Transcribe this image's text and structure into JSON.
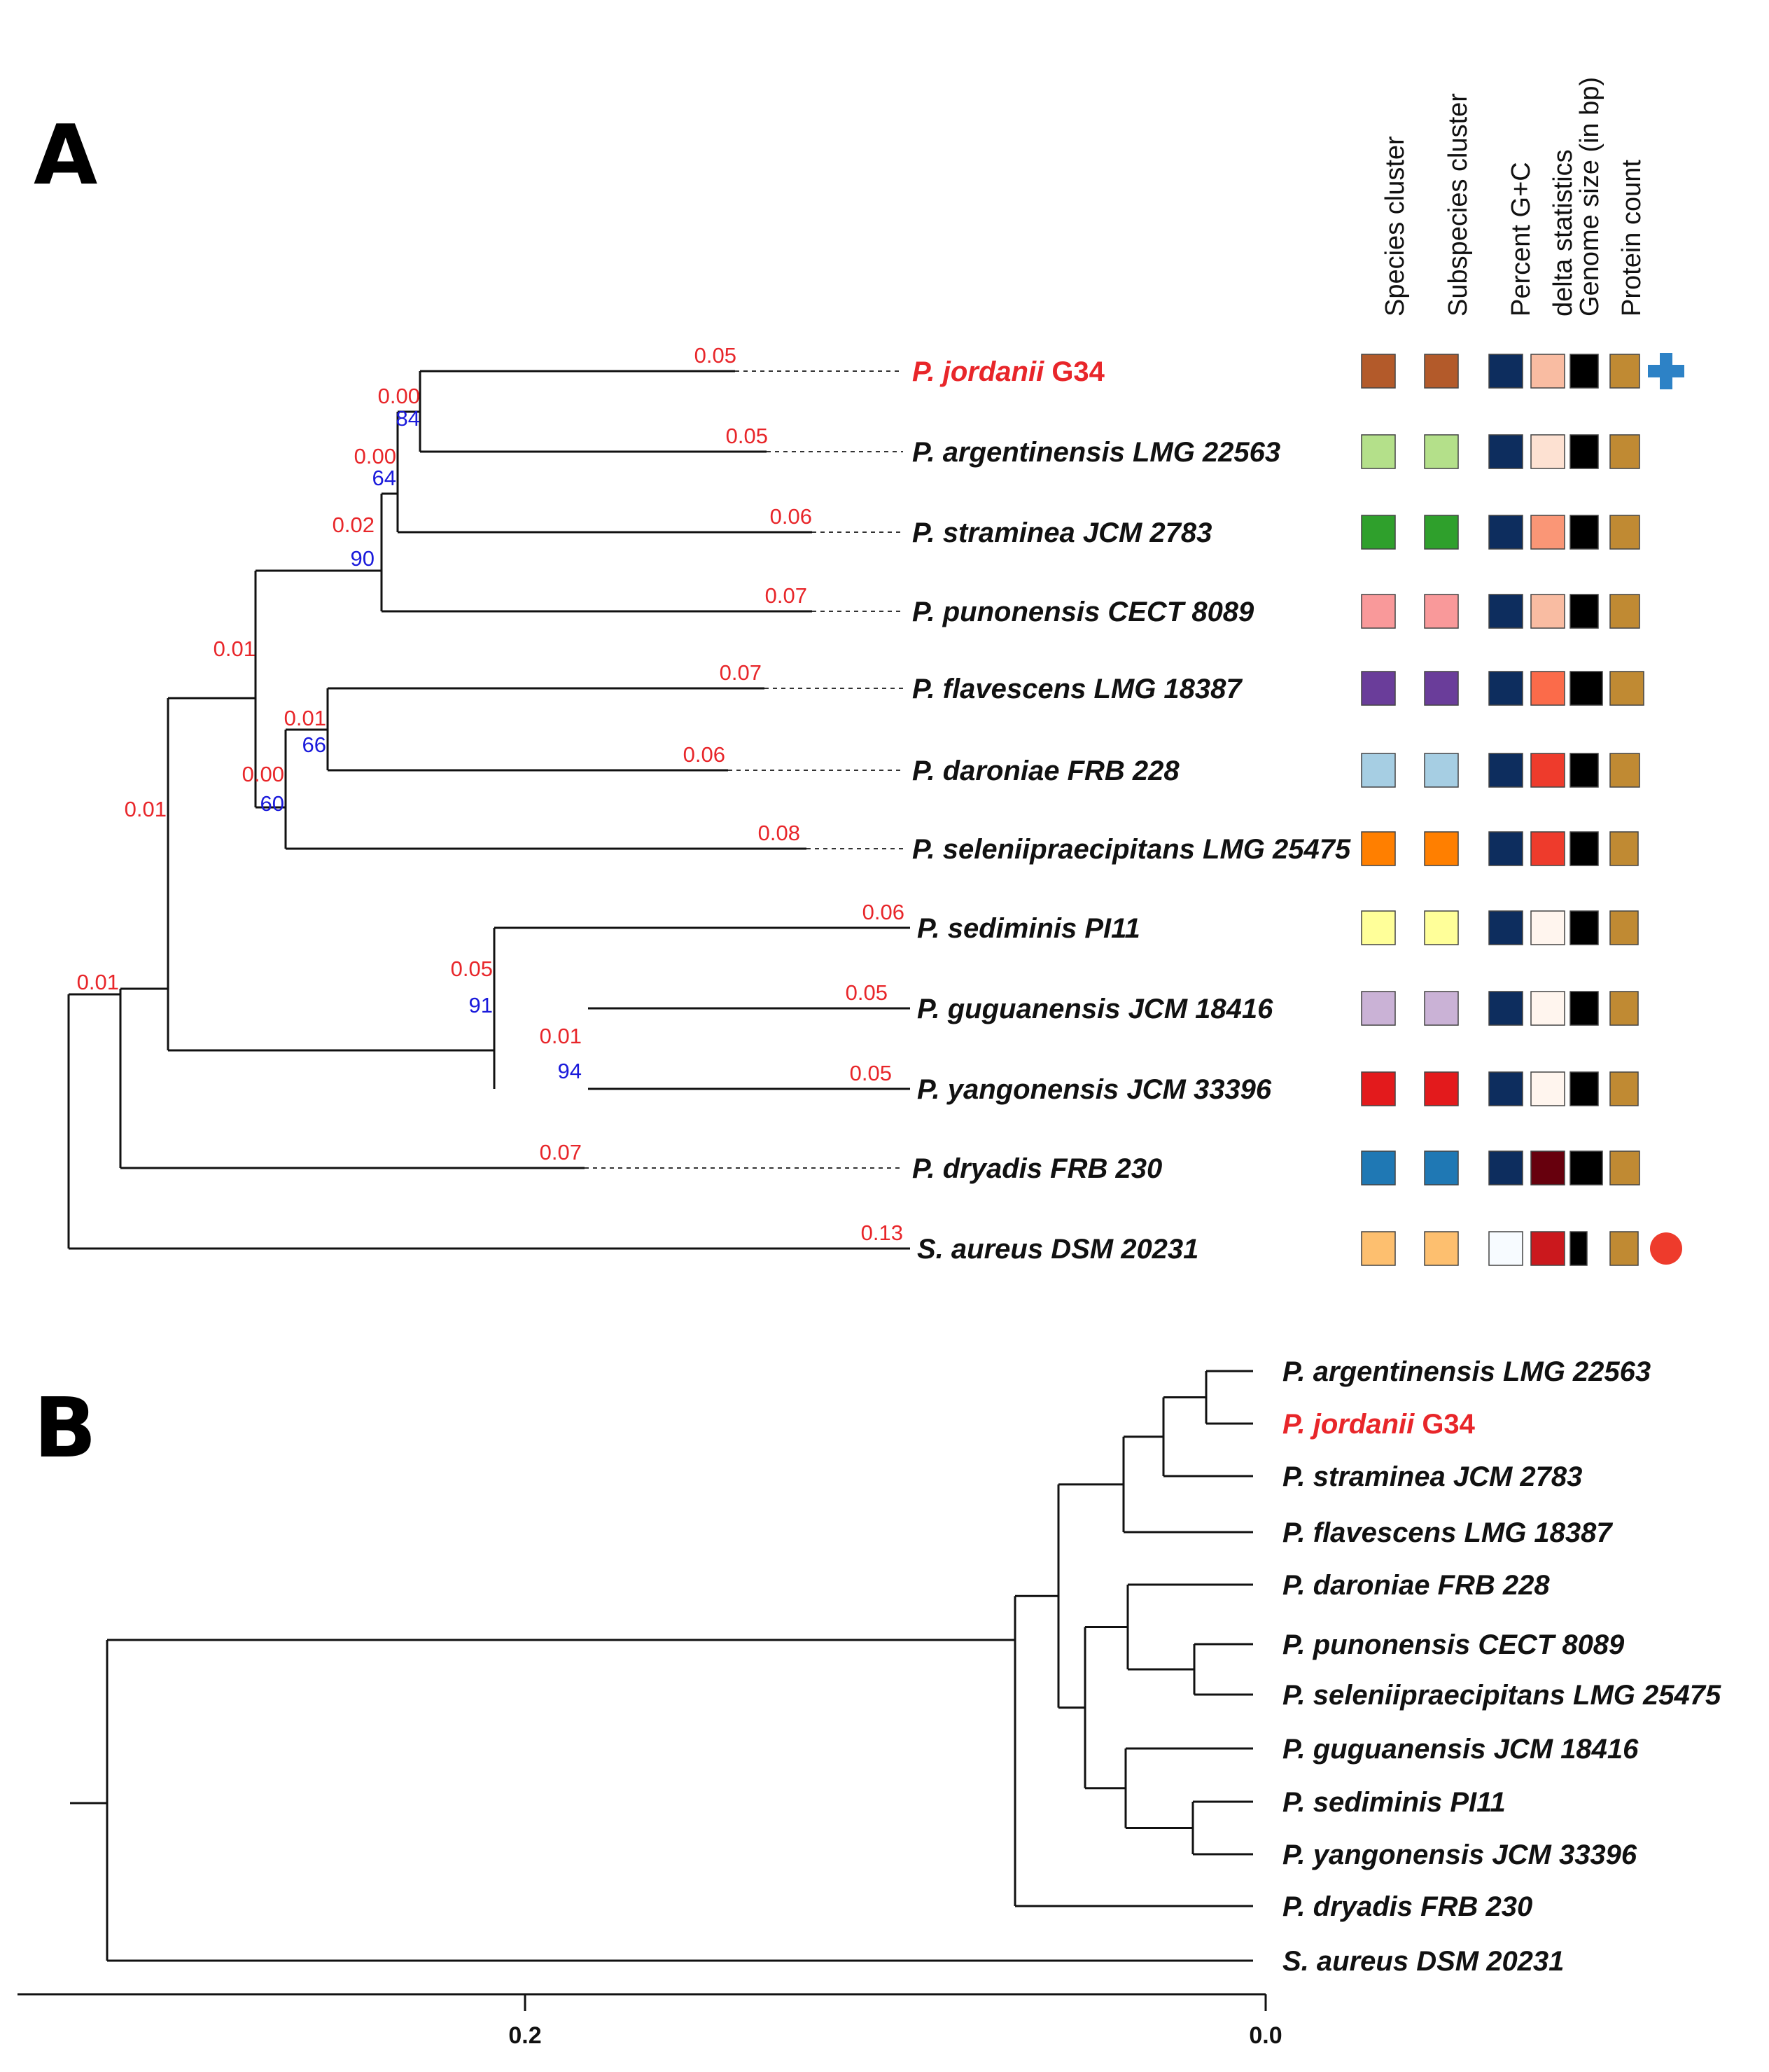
{
  "panels": {
    "a_label": "A",
    "b_label": "B"
  },
  "column_headers": [
    "Species cluster",
    "Subspecies cluster",
    "Percent G+C",
    "delta statistics",
    "Genome size (in bp)",
    "Protein count"
  ],
  "taxa_a": [
    {
      "name": "P. jordanii",
      "strain": " G34",
      "highlight": true,
      "brlen": "0.05",
      "species": "#b35a2a",
      "subspecies": "#b35a2a",
      "gc": "#0d2d5e",
      "delta": "#f9bca2",
      "genome": "#000000",
      "protein": "#c08a33",
      "marker": "plus"
    },
    {
      "name": "P. argentinensis LMG 22563",
      "strain": "",
      "highlight": false,
      "brlen": "0.05",
      "species": "#b4e08a",
      "subspecies": "#b4e08a",
      "gc": "#0d2d5e",
      "delta": "#fde1d2",
      "genome": "#000000",
      "protein": "#c08a33",
      "marker": ""
    },
    {
      "name": "P. straminea JCM 2783",
      "strain": "",
      "highlight": false,
      "brlen": "0.06",
      "species": "#2fa02c",
      "subspecies": "#2fa02c",
      "gc": "#0d2d5e",
      "delta": "#fa9676",
      "genome": "#000000",
      "protein": "#c08a33",
      "marker": ""
    },
    {
      "name": "P. punonensis CECT 8089",
      "strain": "",
      "highlight": false,
      "brlen": "0.07",
      "species": "#f9999a",
      "subspecies": "#f9999a",
      "gc": "#0d2d5e",
      "delta": "#f9bca2",
      "genome": "#000000",
      "protein": "#c08a33",
      "marker": ""
    },
    {
      "name": "P. flavescens LMG 18387",
      "strain": "",
      "highlight": false,
      "brlen": "0.07",
      "species": "#6a3d9a",
      "subspecies": "#6a3d9a",
      "gc": "#0d2d5e",
      "delta": "#fb6b4a",
      "genome": "#000000",
      "protein": "#c08a33",
      "marker": ""
    },
    {
      "name": "P. daroniae FRB 228",
      "strain": "",
      "highlight": false,
      "brlen": "0.06",
      "species": "#a6cee3",
      "subspecies": "#a6cee3",
      "gc": "#0d2d5e",
      "delta": "#ee3b2c",
      "genome": "#000000",
      "protein": "#c08a33",
      "marker": ""
    },
    {
      "name": "P. seleniipraecipitans LMG 25475",
      "strain": "",
      "highlight": false,
      "brlen": "0.08",
      "species": "#ff7f00",
      "subspecies": "#ff7f00",
      "gc": "#0d2d5e",
      "delta": "#ee3b2c",
      "genome": "#000000",
      "protein": "#c08a33",
      "marker": ""
    },
    {
      "name": "P. sediminis PI11",
      "strain": "",
      "highlight": false,
      "brlen": "0.06",
      "species": "#ffff99",
      "subspecies": "#ffff99",
      "gc": "#0d2d5e",
      "delta": "#fff5ee",
      "genome": "#000000",
      "protein": "#c08a33",
      "marker": ""
    },
    {
      "name": "P. guguanensis JCM 18416",
      "strain": "",
      "highlight": false,
      "brlen": "0.05",
      "species": "#cab2d6",
      "subspecies": "#cab2d6",
      "gc": "#0d2d5e",
      "delta": "#fff5ee",
      "genome": "#000000",
      "protein": "#c08a33",
      "marker": ""
    },
    {
      "name": "P. yangonensis JCM 33396",
      "strain": "",
      "highlight": false,
      "brlen": "0.05",
      "species": "#e31a1c",
      "subspecies": "#e31a1c",
      "gc": "#0d2d5e",
      "delta": "#fff5ee",
      "genome": "#000000",
      "protein": "#c08a33",
      "marker": ""
    },
    {
      "name": "P. dryadis FRB 230",
      "strain": "",
      "highlight": false,
      "brlen": "0.07",
      "species": "#1f78b4",
      "subspecies": "#1f78b4",
      "gc": "#0d2d5e",
      "delta": "#67000d",
      "genome": "#000000",
      "protein": "#c08a33",
      "marker": ""
    },
    {
      "name": "S. aureus DSM 20231",
      "strain": "",
      "highlight": false,
      "brlen": "0.13",
      "species": "#fdbf6f",
      "subspecies": "#fdbf6f",
      "gc": "#f7fbff",
      "delta": "#cb181d",
      "genome": "#000000",
      "protein": "#c08a33",
      "marker": "circle"
    }
  ],
  "internal_nodes_a": {
    "n_jordanii_argentinensis": {
      "length": "0.00",
      "support": "84"
    },
    "n_plus_straminea": {
      "length": "0.00",
      "support": "64"
    },
    "n_plus_punonensis": {
      "length": "0.02",
      "support": "90"
    },
    "n_flavescens_daroniae": {
      "length": "0.01",
      "support": "66"
    },
    "n_plus_seleniipraecipitans": {
      "length": "0.00",
      "support": "60"
    },
    "n_upper_clade": {
      "length": "0.01",
      "support": ""
    },
    "n_guguanensis_yangonensis": {
      "length": "0.01",
      "support": "94"
    },
    "n_sediminis_clade": {
      "length": "0.05",
      "support": "91"
    },
    "n_ingroup_minus_dryadis": {
      "length": "0.01",
      "support": ""
    },
    "n_ingroup": {
      "length": "0.01",
      "support": ""
    }
  },
  "taxa_b": [
    {
      "name": "P. argentinensis LMG 22563",
      "strain": "",
      "highlight": false
    },
    {
      "name": "P. jordanii",
      "strain": " G34",
      "highlight": true
    },
    {
      "name": "P. straminea JCM 2783",
      "strain": "",
      "highlight": false
    },
    {
      "name": "P. flavescens LMG 18387",
      "strain": "",
      "highlight": false
    },
    {
      "name": "P. daroniae FRB 228",
      "strain": "",
      "highlight": false
    },
    {
      "name": "P. punonensis CECT 8089",
      "strain": "",
      "highlight": false
    },
    {
      "name": "P. seleniipraecipitans LMG 25475",
      "strain": "",
      "highlight": false
    },
    {
      "name": "P. guguanensis JCM 18416",
      "strain": "",
      "highlight": false
    },
    {
      "name": "P. sediminis PI11",
      "strain": "",
      "highlight": false
    },
    {
      "name": "P. yangonensis JCM 33396",
      "strain": "",
      "highlight": false
    },
    {
      "name": "P. dryadis FRB 230",
      "strain": "",
      "highlight": false
    },
    {
      "name": "S. aureus DSM 20231",
      "strain": "",
      "highlight": false
    }
  ],
  "axis_b": {
    "ticks": [
      "0.2",
      "0.0"
    ]
  }
}
